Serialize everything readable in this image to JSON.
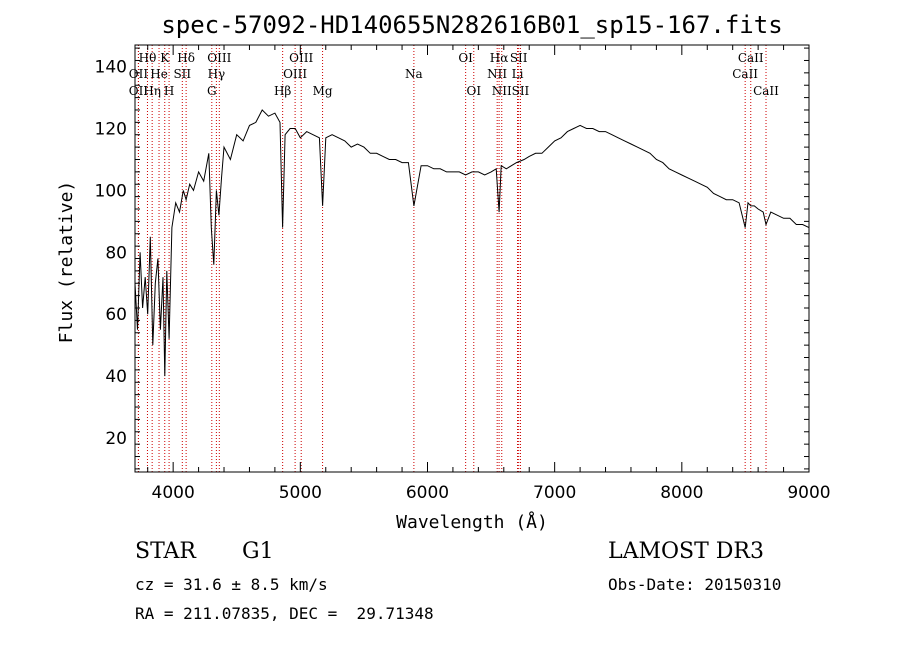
{
  "chart_data": {
    "type": "line",
    "title": "spec-57092-HD140655N282616B01_sp15-167.fits",
    "xlabel": "Wavelength (Å)",
    "ylabel": "Flux (relative)",
    "xlim": [
      3700,
      9000
    ],
    "ylim": [
      9,
      147
    ],
    "xticks": [
      4000,
      5000,
      6000,
      7000,
      8000,
      9000
    ],
    "yticks": [
      20,
      40,
      60,
      80,
      100,
      120,
      140
    ],
    "grid": false,
    "series": [
      {
        "x": [
          3700,
          3720,
          3740,
          3760,
          3780,
          3800,
          3820,
          3840,
          3860,
          3880,
          3900,
          3920,
          3934,
          3950,
          3968,
          3990,
          4020,
          4050,
          4080,
          4102,
          4130,
          4160,
          4200,
          4240,
          4280,
          4300,
          4320,
          4340,
          4360,
          4380,
          4400,
          4450,
          4500,
          4550,
          4600,
          4650,
          4700,
          4750,
          4800,
          4840,
          4861,
          4880,
          4920,
          4960,
          5000,
          5050,
          5100,
          5150,
          5175,
          5200,
          5250,
          5300,
          5350,
          5400,
          5450,
          5500,
          5550,
          5600,
          5650,
          5700,
          5750,
          5800,
          5850,
          5893,
          5950,
          6000,
          6050,
          6100,
          6150,
          6200,
          6250,
          6300,
          6350,
          6400,
          6450,
          6500,
          6540,
          6563,
          6580,
          6620,
          6660,
          6700,
          6760,
          6800,
          6850,
          6900,
          6950,
          7000,
          7050,
          7100,
          7150,
          7200,
          7250,
          7300,
          7350,
          7400,
          7450,
          7500,
          7550,
          7600,
          7650,
          7700,
          7750,
          7800,
          7850,
          7900,
          7950,
          8000,
          8050,
          8100,
          8150,
          8200,
          8250,
          8300,
          8350,
          8400,
          8450,
          8498,
          8520,
          8542,
          8570,
          8600,
          8640,
          8662,
          8700,
          8750,
          8800,
          8850,
          8900,
          8950,
          9000
        ],
        "y": [
          70,
          55,
          80,
          62,
          72,
          60,
          85,
          50,
          70,
          78,
          55,
          72,
          40,
          74,
          52,
          88,
          96,
          93,
          100,
          97,
          102,
          100,
          106,
          103,
          112,
          88,
          76,
          100,
          92,
          104,
          114,
          110,
          118,
          116,
          121,
          122,
          126,
          124,
          125,
          122,
          88,
          118,
          120,
          120,
          117,
          119,
          118,
          117,
          95,
          117,
          118,
          117,
          116,
          114,
          115,
          114,
          112,
          112,
          111,
          110,
          110,
          109,
          109,
          95,
          108,
          108,
          107,
          107,
          106,
          106,
          106,
          105,
          106,
          106,
          105,
          106,
          107,
          93,
          108,
          107,
          108,
          109,
          110,
          111,
          112,
          112,
          114,
          116,
          117,
          119,
          120,
          121,
          120,
          120,
          119,
          119,
          118,
          117,
          116,
          115,
          114,
          113,
          112,
          110,
          109,
          107,
          106,
          105,
          104,
          103,
          102,
          101,
          99,
          98,
          97,
          97,
          96,
          88,
          96,
          95,
          95,
          94,
          93,
          89,
          93,
          92,
          91,
          91,
          89,
          89,
          88
        ]
      }
    ],
    "lines": [
      {
        "label": "Hθ",
        "wl": 3798,
        "row": 1
      },
      {
        "label": "OII",
        "wl": 3727,
        "row": 2
      },
      {
        "label": "OII",
        "wl": 3727,
        "row": 3
      },
      {
        "label": "Hη",
        "wl": 3835,
        "row": 3
      },
      {
        "label": "He",
        "wl": 3889,
        "row": 2
      },
      {
        "label": "K",
        "wl": 3934,
        "row": 1
      },
      {
        "label": "H",
        "wl": 3968,
        "row": 3
      },
      {
        "label": "Hδ",
        "wl": 4102,
        "row": 1
      },
      {
        "label": "SII",
        "wl": 4072,
        "row": 2
      },
      {
        "label": "OIII",
        "wl": 4363,
        "row": 1
      },
      {
        "label": "Hγ",
        "wl": 4340,
        "row": 2
      },
      {
        "label": "G",
        "wl": 4304,
        "row": 3
      },
      {
        "label": "Hβ",
        "wl": 4861,
        "row": 3
      },
      {
        "label": "OIII",
        "wl": 4959,
        "row": 2
      },
      {
        "label": "OIII",
        "wl": 5007,
        "row": 1
      },
      {
        "label": "Mg",
        "wl": 5175,
        "row": 3
      },
      {
        "label": "Na",
        "wl": 5893,
        "row": 2
      },
      {
        "label": "OI",
        "wl": 6300,
        "row": 1
      },
      {
        "label": "OI",
        "wl": 6364,
        "row": 3
      },
      {
        "label": "Hα",
        "wl": 6563,
        "row": 1
      },
      {
        "label": "NII",
        "wl": 6548,
        "row": 2
      },
      {
        "label": "NII",
        "wl": 6584,
        "row": 3
      },
      {
        "label": "Li",
        "wl": 6708,
        "row": 2
      },
      {
        "label": "SII",
        "wl": 6717,
        "row": 1
      },
      {
        "label": "SII",
        "wl": 6731,
        "row": 3
      },
      {
        "label": "CaII",
        "wl": 8498,
        "row": 2
      },
      {
        "label": "CaII",
        "wl": 8542,
        "row": 1
      },
      {
        "label": "CaII",
        "wl": 8662,
        "row": 3
      }
    ]
  },
  "info": {
    "class": "STAR",
    "subclass": "G1",
    "survey": "LAMOST DR3",
    "cz": "cz = 31.6 ± 8.5 km/s",
    "obs_date": "Obs-Date: 20150310",
    "radec": "RA = 211.07835, DEC =  29.71348"
  },
  "colors": {
    "line_marker": "#cc0000",
    "spectrum": "#000000"
  }
}
